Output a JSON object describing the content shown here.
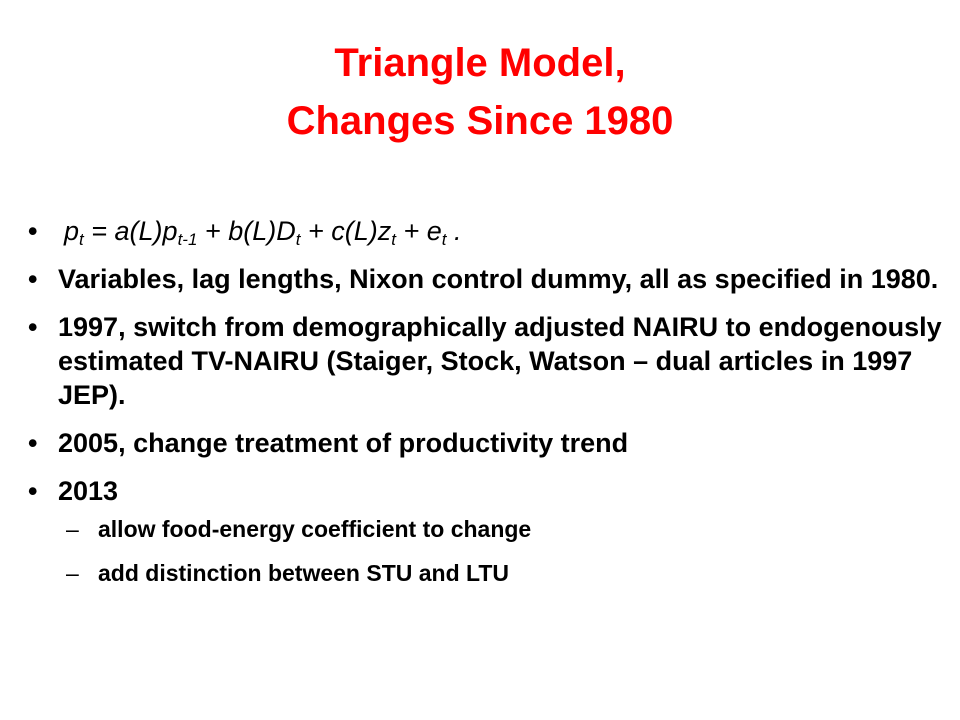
{
  "slide": {
    "title_line1": "Triangle Model,",
    "title_line2": "Changes Since 1980",
    "formula": {
      "p": "p",
      "p_sub": "t",
      "eq": " = a(L)p",
      "p2_sub": "t-1",
      "b": " + b(L)D",
      "d_sub": "t",
      "c": " + c(L)z",
      "z_sub": "t",
      "e": " + e",
      "e_sub": "t",
      "end": " ."
    },
    "bullets": [
      "Variables, lag lengths, Nixon control dummy, all as specified in 1980.",
      "1997, switch from demographically adjusted NAIRU to endogenously estimated TV-NAIRU (Staiger, Stock, Watson – dual articles in 1997 JEP).",
      "2005, change treatment of productivity trend",
      "2013"
    ],
    "sub_bullets": [
      "allow food-energy coefficient to change",
      "add distinction between STU and LTU"
    ],
    "bullet_glyph": "•",
    "dash_glyph": "–",
    "title_color": "#ff0000"
  }
}
